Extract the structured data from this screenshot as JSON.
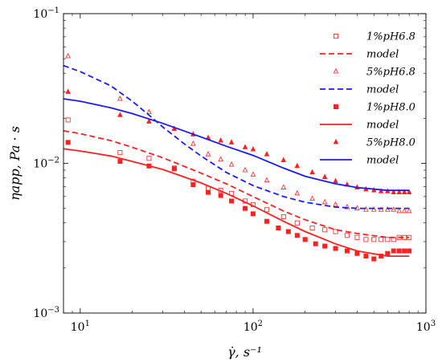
{
  "chart_data": {
    "type": "scatter",
    "xscale": "log",
    "yscale": "log",
    "xlim": [
      8,
      1000
    ],
    "ylim": [
      0.001,
      0.1
    ],
    "xlabel": "γ̇, s⁻¹",
    "ylabel": "ηapp, Pa · s",
    "grid": false,
    "legend_position": "top-right",
    "x_ticks": [
      {
        "value": 10,
        "mantissa": "10",
        "exp": "1"
      },
      {
        "value": 100,
        "mantissa": "10",
        "exp": "2"
      },
      {
        "value": 1000,
        "mantissa": "10",
        "exp": "3"
      }
    ],
    "y_ticks": [
      {
        "value": 0.001,
        "mantissa": "10",
        "exp": "−3"
      },
      {
        "value": 0.01,
        "mantissa": "10",
        "exp": "−2"
      },
      {
        "value": 0.1,
        "mantissa": "10",
        "exp": "−1"
      }
    ],
    "series": [
      {
        "name": "1%pH6.8",
        "kind": "markers",
        "marker": "square-open",
        "color": "#ff2020",
        "x": [
          8.5,
          17,
          25,
          35,
          45,
          55,
          65,
          75,
          90,
          100,
          120,
          150,
          180,
          220,
          260,
          300,
          350,
          400,
          450,
          500,
          550,
          600,
          650,
          700,
          750,
          800
        ],
        "y": [
          0.0195,
          0.0118,
          0.0108,
          0.0093,
          0.0076,
          0.0068,
          0.0066,
          0.0063,
          0.0056,
          0.0053,
          0.0049,
          0.0044,
          0.004,
          0.0037,
          0.0036,
          0.0035,
          0.0033,
          0.0032,
          0.0031,
          0.0031,
          0.0031,
          0.0031,
          0.0031,
          0.0032,
          0.0032,
          0.0032
        ]
      },
      {
        "name": "model",
        "kind": "line",
        "dash": "dashed",
        "color": "#ff2020",
        "x": [
          8,
          10,
          15,
          20,
          30,
          50,
          70,
          100,
          150,
          200,
          300,
          400,
          600,
          800
        ],
        "y": [
          0.0165,
          0.0158,
          0.0142,
          0.0128,
          0.0109,
          0.0086,
          0.0073,
          0.006,
          0.0048,
          0.0042,
          0.0036,
          0.0034,
          0.0032,
          0.0032
        ]
      },
      {
        "name": "5%pH6.8",
        "kind": "markers",
        "marker": "triangle-open",
        "color": "#ff2020",
        "x": [
          8.5,
          17,
          25,
          35,
          45,
          55,
          65,
          75,
          90,
          100,
          120,
          150,
          180,
          220,
          260,
          300,
          350,
          400,
          450,
          500,
          550,
          600,
          650,
          700,
          750,
          800
        ],
        "y": [
          0.052,
          0.027,
          0.022,
          0.017,
          0.0135,
          0.0115,
          0.0106,
          0.0098,
          0.009,
          0.0084,
          0.0077,
          0.0069,
          0.0063,
          0.0058,
          0.0055,
          0.0053,
          0.0051,
          0.005,
          0.0049,
          0.0049,
          0.0049,
          0.0049,
          0.0049,
          0.0048,
          0.0048,
          0.0048
        ]
      },
      {
        "name": "model",
        "kind": "line",
        "dash": "dashed",
        "color": "#1a1aff",
        "x": [
          8,
          10,
          15,
          20,
          25,
          30,
          40,
          50,
          70,
          100,
          150,
          200,
          300,
          400,
          600,
          800
        ],
        "y": [
          0.045,
          0.041,
          0.033,
          0.026,
          0.021,
          0.0175,
          0.0135,
          0.0112,
          0.0087,
          0.0071,
          0.006,
          0.0055,
          0.0051,
          0.005,
          0.005,
          0.005
        ]
      },
      {
        "name": "1%pH8.0",
        "kind": "markers",
        "marker": "square-filled",
        "color": "#ff2020",
        "x": [
          8.5,
          17,
          25,
          35,
          45,
          55,
          65,
          75,
          90,
          100,
          120,
          140,
          160,
          180,
          200,
          230,
          260,
          300,
          350,
          400,
          450,
          500,
          550,
          600,
          650,
          700,
          750,
          800
        ],
        "y": [
          0.0138,
          0.0103,
          0.0096,
          0.0092,
          0.0072,
          0.0064,
          0.0061,
          0.0056,
          0.005,
          0.0046,
          0.0041,
          0.0037,
          0.0035,
          0.0033,
          0.0031,
          0.0029,
          0.0028,
          0.0027,
          0.0026,
          0.0025,
          0.0024,
          0.0023,
          0.0024,
          0.0025,
          0.0026,
          0.0026,
          0.0026,
          0.0026
        ]
      },
      {
        "name": "model",
        "kind": "line",
        "dash": "solid",
        "color": "#ff2020",
        "x": [
          8,
          10,
          15,
          20,
          30,
          50,
          70,
          100,
          150,
          200,
          300,
          400,
          600,
          800
        ],
        "y": [
          0.0125,
          0.0121,
          0.0112,
          0.0103,
          0.0091,
          0.0074,
          0.0063,
          0.0052,
          0.0041,
          0.0035,
          0.0029,
          0.0026,
          0.0024,
          0.0024
        ]
      },
      {
        "name": "5%pH8.0",
        "kind": "markers",
        "marker": "triangle-filled",
        "color": "#ff2020",
        "x": [
          8.5,
          17,
          25,
          35,
          45,
          55,
          65,
          75,
          90,
          100,
          120,
          150,
          180,
          220,
          260,
          300,
          350,
          400,
          450,
          500,
          550,
          600,
          650,
          700,
          750,
          800
        ],
        "y": [
          0.03,
          0.021,
          0.019,
          0.017,
          0.0156,
          0.0148,
          0.0142,
          0.0138,
          0.0128,
          0.0124,
          0.0115,
          0.0105,
          0.0096,
          0.0087,
          0.0081,
          0.0076,
          0.0072,
          0.0069,
          0.0067,
          0.0066,
          0.0065,
          0.0065,
          0.0064,
          0.0064,
          0.0064,
          0.0064
        ]
      },
      {
        "name": "model",
        "kind": "line",
        "dash": "solid",
        "color": "#1a1aff",
        "x": [
          8,
          10,
          15,
          20,
          30,
          50,
          70,
          100,
          150,
          200,
          300,
          400,
          600,
          800
        ],
        "y": [
          0.027,
          0.026,
          0.0235,
          0.0215,
          0.0185,
          0.015,
          0.013,
          0.0113,
          0.0093,
          0.0082,
          0.0073,
          0.0069,
          0.0066,
          0.0066
        ]
      }
    ]
  }
}
